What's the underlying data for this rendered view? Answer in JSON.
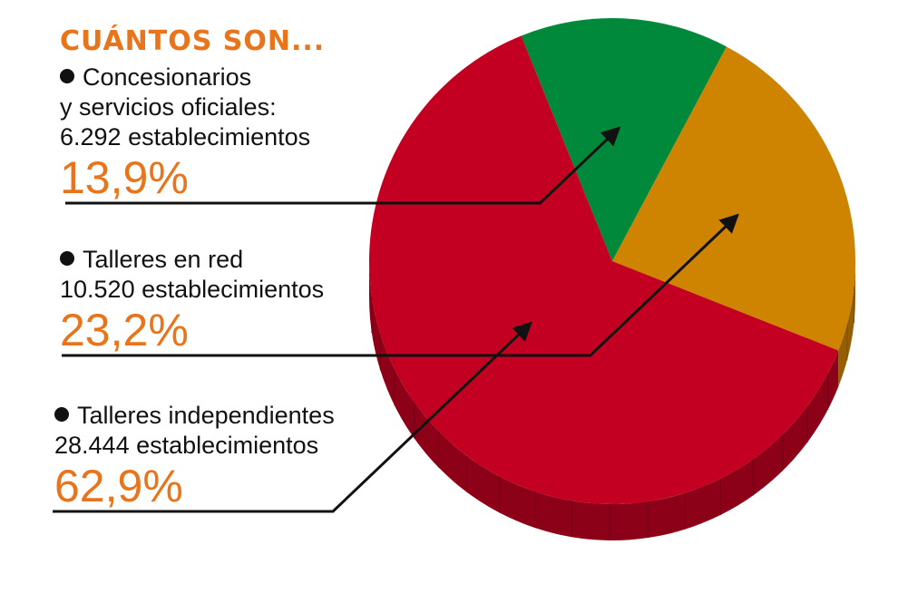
{
  "title": "CUÁNTOS SON...",
  "chart_data": {
    "type": "pie",
    "slices": [
      {
        "label": "Concesionarios y servicios oficiales",
        "count": "6.292 establecimientos",
        "value": 13.9,
        "value_label": "13,9%",
        "color": "#00883b"
      },
      {
        "label": "Talleres en red",
        "count": "10.520 establecimientos",
        "value": 23.2,
        "value_label": "23,2%",
        "color": "#cf8400"
      },
      {
        "label": "Talleres independientes",
        "count": "28.444 establecimientos",
        "value": 62.9,
        "value_label": "62,9%",
        "color": "#c30022"
      }
    ],
    "legend": [
      {
        "lines": [
          "Concesionarios",
          "y servicios oficiales:",
          "6.292 establecimientos"
        ],
        "value_label": "13,9%"
      },
      {
        "lines": [
          "Talleres en red",
          "10.520 establecimientos"
        ],
        "value_label": "23,2%"
      },
      {
        "lines": [
          "Talleres independientes",
          "28.444 establecimientos"
        ],
        "value_label": "62,9%"
      }
    ],
    "style": "3d"
  }
}
